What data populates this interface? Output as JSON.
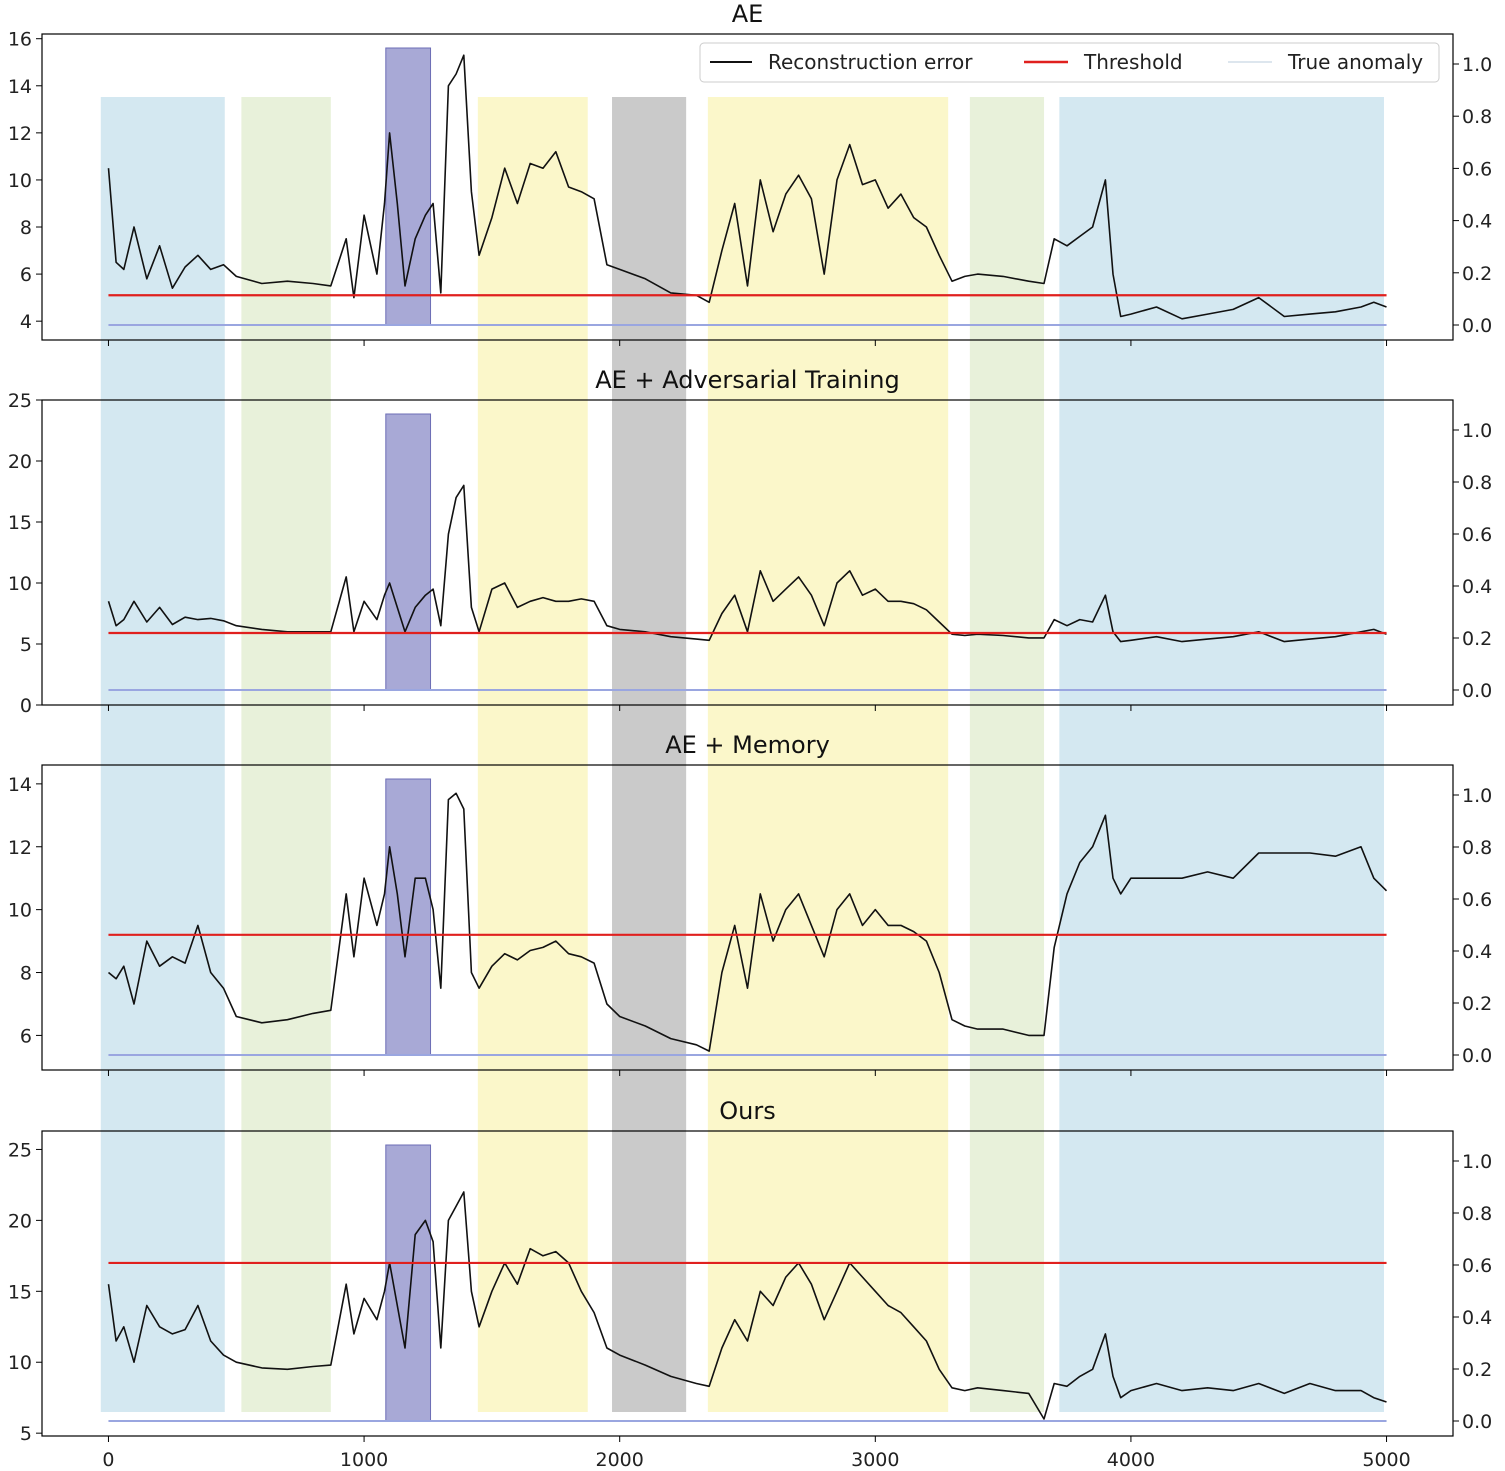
{
  "figure": {
    "legend": {
      "entries": [
        {
          "label": "Reconstruction error",
          "color": "#111111"
        },
        {
          "label": "Threshold",
          "color": "#e0201e"
        },
        {
          "label": "True anomaly",
          "color": "#dde6ee"
        }
      ],
      "placement": "top-right of first panel"
    },
    "x_ticks": [
      "0",
      "1000",
      "2000",
      "3000",
      "4000",
      "5000"
    ],
    "right_ticks": [
      "0.0",
      "0.2",
      "0.4",
      "0.6",
      "0.8",
      "1.0"
    ],
    "colors": {
      "error": "#111111",
      "threshold": "#e0201e",
      "true_anomaly": "#9aa6e0",
      "bands": {
        "blue": "#cfe6ef",
        "green": "#e5efd6",
        "purple": "#8b8cc8",
        "yellow": "#fbf6c4",
        "gray": "#c4c4c4"
      }
    },
    "bands": [
      {
        "x0": -30,
        "x1": 455,
        "color": "blue"
      },
      {
        "x0": 520,
        "x1": 870,
        "color": "green"
      },
      {
        "x0": 1085,
        "x1": 1260,
        "color": "purple"
      },
      {
        "x0": 1445,
        "x1": 1875,
        "color": "yellow"
      },
      {
        "x0": 1970,
        "x1": 2260,
        "color": "gray"
      },
      {
        "x0": 2345,
        "x1": 3285,
        "color": "yellow"
      },
      {
        "x0": 3370,
        "x1": 3660,
        "color": "green"
      },
      {
        "x0": 3720,
        "x1": 4990,
        "color": "blue"
      }
    ]
  },
  "chart_data": [
    {
      "type": "line",
      "title": "AE",
      "xlim": [
        -260,
        5260
      ],
      "ylim": [
        3.2,
        16.2
      ],
      "y_ticks": [
        4,
        6,
        8,
        10,
        12,
        14,
        16
      ],
      "x": [
        0,
        30,
        60,
        100,
        150,
        200,
        250,
        300,
        350,
        400,
        450,
        500,
        600,
        700,
        800,
        870,
        930,
        960,
        1000,
        1050,
        1080,
        1100,
        1130,
        1160,
        1200,
        1240,
        1270,
        1300,
        1330,
        1360,
        1390,
        1420,
        1450,
        1500,
        1550,
        1600,
        1650,
        1700,
        1750,
        1800,
        1850,
        1900,
        1950,
        2000,
        2100,
        2200,
        2300,
        2350,
        2400,
        2450,
        2500,
        2550,
        2600,
        2650,
        2700,
        2750,
        2800,
        2850,
        2900,
        2950,
        3000,
        3050,
        3100,
        3150,
        3200,
        3250,
        3300,
        3350,
        3400,
        3500,
        3600,
        3660,
        3700,
        3750,
        3800,
        3850,
        3900,
        3930,
        3960,
        4000,
        4100,
        4200,
        4300,
        4400,
        4500,
        4600,
        4700,
        4800,
        4900,
        4950,
        5000
      ],
      "series": [
        {
          "name": "Reconstruction error",
          "values": [
            10.5,
            6.5,
            6.2,
            8.0,
            5.8,
            7.2,
            5.4,
            6.3,
            6.8,
            6.2,
            6.4,
            5.9,
            5.6,
            5.7,
            5.6,
            5.5,
            7.5,
            5.0,
            8.5,
            6.0,
            9.0,
            12.0,
            9.0,
            5.5,
            7.5,
            8.5,
            9.0,
            5.2,
            14.0,
            14.5,
            15.3,
            9.5,
            6.8,
            8.4,
            10.5,
            9.0,
            10.7,
            10.5,
            11.2,
            9.7,
            9.5,
            9.2,
            6.4,
            6.2,
            5.8,
            5.2,
            5.1,
            4.8,
            7.0,
            9.0,
            5.5,
            10.0,
            7.8,
            9.4,
            10.2,
            9.2,
            6.0,
            10.0,
            11.5,
            9.8,
            10.0,
            8.8,
            9.4,
            8.4,
            8.0,
            6.8,
            5.7,
            5.9,
            6.0,
            5.9,
            5.7,
            5.6,
            7.5,
            7.2,
            7.6,
            8.0,
            10.0,
            6.0,
            4.2,
            4.3,
            4.6,
            4.1,
            4.3,
            4.5,
            5.0,
            4.2,
            4.3,
            4.4,
            4.6,
            4.8,
            4.6
          ]
        }
      ],
      "threshold": 5.1,
      "true_anomaly": 0.0
    },
    {
      "type": "line",
      "title": "AE + Adversarial Training",
      "xlim": [
        -260,
        5260
      ],
      "ylim": [
        0,
        25
      ],
      "y_ticks": [
        0,
        5,
        10,
        15,
        20,
        25
      ],
      "x": [
        0,
        30,
        60,
        100,
        150,
        200,
        250,
        300,
        350,
        400,
        450,
        500,
        600,
        700,
        800,
        870,
        930,
        960,
        1000,
        1050,
        1080,
        1100,
        1130,
        1160,
        1200,
        1240,
        1270,
        1300,
        1330,
        1360,
        1390,
        1420,
        1450,
        1500,
        1550,
        1600,
        1650,
        1700,
        1750,
        1800,
        1850,
        1900,
        1950,
        2000,
        2100,
        2200,
        2300,
        2350,
        2400,
        2450,
        2500,
        2550,
        2600,
        2650,
        2700,
        2750,
        2800,
        2850,
        2900,
        2950,
        3000,
        3050,
        3100,
        3150,
        3200,
        3250,
        3300,
        3350,
        3400,
        3500,
        3600,
        3660,
        3700,
        3750,
        3800,
        3850,
        3900,
        3930,
        3960,
        4000,
        4100,
        4200,
        4300,
        4400,
        4500,
        4600,
        4700,
        4800,
        4900,
        4950,
        5000
      ],
      "series": [
        {
          "name": "Reconstruction error",
          "values": [
            8.5,
            6.5,
            7.0,
            8.5,
            6.8,
            8.0,
            6.6,
            7.2,
            7.0,
            7.1,
            6.9,
            6.5,
            6.2,
            6.0,
            6.0,
            6.0,
            10.5,
            6.0,
            8.5,
            7.0,
            9.0,
            10.0,
            8.0,
            6.0,
            8.0,
            9.0,
            9.5,
            6.5,
            14.0,
            17.0,
            18.0,
            8.0,
            6.0,
            9.5,
            10.0,
            8.0,
            8.5,
            8.8,
            8.5,
            8.5,
            8.7,
            8.5,
            6.5,
            6.2,
            6.0,
            5.6,
            5.4,
            5.3,
            7.5,
            9.0,
            6.0,
            11.0,
            8.5,
            9.5,
            10.5,
            9.0,
            6.5,
            10.0,
            11.0,
            9.0,
            9.5,
            8.5,
            8.5,
            8.3,
            7.8,
            6.8,
            5.8,
            5.7,
            5.8,
            5.7,
            5.5,
            5.5,
            7.0,
            6.5,
            7.0,
            6.8,
            9.0,
            6.0,
            5.2,
            5.3,
            5.6,
            5.2,
            5.4,
            5.6,
            6.0,
            5.2,
            5.4,
            5.6,
            6.0,
            6.2,
            5.8
          ]
        }
      ],
      "threshold": 5.9,
      "true_anomaly": 0.0
    },
    {
      "type": "line",
      "title": "AE + Memory",
      "xlim": [
        -260,
        5260
      ],
      "ylim": [
        4.9,
        14.6
      ],
      "y_ticks": [
        6,
        8,
        10,
        12,
        14
      ],
      "x": [
        0,
        30,
        60,
        100,
        150,
        200,
        250,
        300,
        350,
        400,
        450,
        500,
        600,
        700,
        800,
        870,
        930,
        960,
        1000,
        1050,
        1080,
        1100,
        1130,
        1160,
        1200,
        1240,
        1270,
        1300,
        1330,
        1360,
        1390,
        1420,
        1450,
        1500,
        1550,
        1600,
        1650,
        1700,
        1750,
        1800,
        1850,
        1900,
        1950,
        2000,
        2100,
        2200,
        2300,
        2350,
        2400,
        2450,
        2500,
        2550,
        2600,
        2650,
        2700,
        2750,
        2800,
        2850,
        2900,
        2950,
        3000,
        3050,
        3100,
        3150,
        3200,
        3250,
        3300,
        3350,
        3400,
        3500,
        3600,
        3660,
        3700,
        3750,
        3800,
        3850,
        3900,
        3930,
        3960,
        4000,
        4100,
        4200,
        4300,
        4400,
        4500,
        4600,
        4700,
        4800,
        4900,
        4950,
        5000
      ],
      "series": [
        {
          "name": "Reconstruction error",
          "values": [
            8.0,
            7.8,
            8.2,
            7.0,
            9.0,
            8.2,
            8.5,
            8.3,
            9.5,
            8.0,
            7.5,
            6.6,
            6.4,
            6.5,
            6.7,
            6.8,
            10.5,
            8.5,
            11.0,
            9.5,
            10.5,
            12.0,
            10.5,
            8.5,
            11.0,
            11.0,
            10.0,
            7.5,
            13.5,
            13.7,
            13.2,
            8.0,
            7.5,
            8.2,
            8.6,
            8.4,
            8.7,
            8.8,
            9.0,
            8.6,
            8.5,
            8.3,
            7.0,
            6.6,
            6.3,
            5.9,
            5.7,
            5.5,
            8.0,
            9.5,
            7.5,
            10.5,
            9.0,
            10.0,
            10.5,
            9.5,
            8.5,
            10.0,
            10.5,
            9.5,
            10.0,
            9.5,
            9.5,
            9.3,
            9.0,
            8.0,
            6.5,
            6.3,
            6.2,
            6.2,
            6.0,
            6.0,
            8.8,
            10.5,
            11.5,
            12.0,
            13.0,
            11.0,
            10.5,
            11.0,
            11.0,
            11.0,
            11.2,
            11.0,
            11.8,
            11.8,
            11.8,
            11.7,
            12.0,
            11.0,
            10.6
          ]
        }
      ],
      "threshold": 9.2,
      "true_anomaly": 0.0
    },
    {
      "type": "line",
      "title": "Ours",
      "xlim": [
        -260,
        5260
      ],
      "ylim": [
        4.8,
        26.3
      ],
      "y_ticks": [
        5,
        10,
        15,
        20,
        25
      ],
      "x": [
        0,
        30,
        60,
        100,
        150,
        200,
        250,
        300,
        350,
        400,
        450,
        500,
        600,
        700,
        800,
        870,
        930,
        960,
        1000,
        1050,
        1080,
        1100,
        1130,
        1160,
        1200,
        1240,
        1270,
        1300,
        1330,
        1360,
        1390,
        1420,
        1450,
        1500,
        1550,
        1600,
        1650,
        1700,
        1750,
        1800,
        1850,
        1900,
        1950,
        2000,
        2100,
        2200,
        2300,
        2350,
        2400,
        2450,
        2500,
        2550,
        2600,
        2650,
        2700,
        2750,
        2800,
        2850,
        2900,
        2950,
        3000,
        3050,
        3100,
        3150,
        3200,
        3250,
        3300,
        3350,
        3400,
        3500,
        3600,
        3660,
        3700,
        3750,
        3800,
        3850,
        3900,
        3930,
        3960,
        4000,
        4100,
        4200,
        4300,
        4400,
        4500,
        4600,
        4700,
        4800,
        4900,
        4950,
        5000
      ],
      "series": [
        {
          "name": "Reconstruction error",
          "values": [
            15.5,
            11.5,
            12.5,
            10.0,
            14.0,
            12.5,
            12.0,
            12.3,
            14.0,
            11.5,
            10.5,
            10.0,
            9.6,
            9.5,
            9.7,
            9.8,
            15.5,
            12.0,
            14.5,
            13.0,
            15.0,
            17.0,
            14.0,
            11.0,
            19.0,
            20.0,
            18.5,
            11.0,
            20.0,
            21.0,
            22.0,
            15.0,
            12.5,
            15.0,
            17.0,
            15.5,
            18.0,
            17.5,
            17.8,
            17.0,
            15.0,
            13.5,
            11.0,
            10.5,
            9.8,
            9.0,
            8.5,
            8.3,
            11.0,
            13.0,
            11.5,
            15.0,
            14.0,
            16.0,
            17.0,
            15.5,
            13.0,
            15.0,
            17.0,
            16.0,
            15.0,
            14.0,
            13.5,
            12.5,
            11.5,
            9.5,
            8.2,
            8.0,
            8.2,
            8.0,
            7.8,
            6.0,
            8.5,
            8.3,
            9.0,
            9.5,
            12.0,
            9.0,
            7.5,
            8.0,
            8.5,
            8.0,
            8.2,
            8.0,
            8.5,
            7.8,
            8.5,
            8.0,
            8.0,
            7.5,
            7.2
          ]
        }
      ],
      "threshold": 17.0,
      "true_anomaly": 0.0
    }
  ]
}
